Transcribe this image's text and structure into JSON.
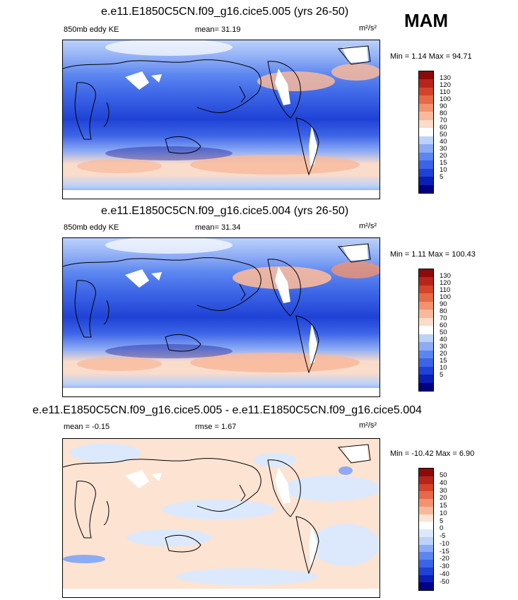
{
  "season": "MAM",
  "colors": {
    "ke_levels": [
      "#020080",
      "#0a1fb5",
      "#1f42d6",
      "#3c64e6",
      "#5b86f0",
      "#8cabf5",
      "#bcd2fa",
      "#ffffff",
      "#fadccb",
      "#f8b99b",
      "#f2926e",
      "#e66a48",
      "#d4432a",
      "#b8241a",
      "#8c0a0a"
    ],
    "diff_levels": [
      "#020080",
      "#0a1fb5",
      "#1f42d6",
      "#3c64e6",
      "#5b86f0",
      "#8cabf5",
      "#bcd2fa",
      "#dce9fc",
      "#ffffff",
      "#fde3d2",
      "#f8b99b",
      "#f2926e",
      "#e66a48",
      "#d4432a",
      "#b8241a",
      "#8c0a0a"
    ]
  },
  "chart_data": [
    {
      "type": "heatmap",
      "title": "e.e11.E1850C5CN.f09_g16.cice5.005 (yrs 26-50)",
      "left_label": "850mb eddy KE",
      "center_label": "mean=  31.19",
      "units": "m²/s²",
      "stats": "Min =  1.14 Max =  94.71",
      "mean": 31.19,
      "min": 1.14,
      "max": 94.71,
      "colorbar_labels": [
        "130",
        "120",
        "110",
        "100",
        "90",
        "80",
        "70",
        "60",
        "50",
        "40",
        "30",
        "20",
        "15",
        "10",
        "5"
      ]
    },
    {
      "type": "heatmap",
      "title": "e.e11.E1850C5CN.f09_g16.cice5.004 (yrs 26-50)",
      "left_label": "850mb eddy KE",
      "center_label": "mean=  31.34",
      "units": "m²/s²",
      "stats": "Min =  1.11 Max =  100.43",
      "mean": 31.34,
      "min": 1.11,
      "max": 100.43,
      "colorbar_labels": [
        "130",
        "120",
        "110",
        "100",
        "90",
        "80",
        "70",
        "60",
        "50",
        "40",
        "30",
        "20",
        "15",
        "10",
        "5"
      ]
    },
    {
      "type": "heatmap",
      "title": "e.e11.E1850C5CN.f09_g16.cice5.005 - e.e11.E1850C5CN.f09_g16.cice5.004",
      "left_label": "mean =  -0.15",
      "center_label": "rmse =  1.67",
      "units": "m²/s²",
      "stats": "Min = -10.42 Max =  6.90",
      "mean": -0.15,
      "rmse": 1.67,
      "min": -10.42,
      "max": 6.9,
      "colorbar_labels": [
        "50",
        "40",
        "30",
        "20",
        "15",
        "10",
        "5",
        "0",
        "-5",
        "-10",
        "-15",
        "-20",
        "-30",
        "-40",
        "-50"
      ]
    }
  ]
}
